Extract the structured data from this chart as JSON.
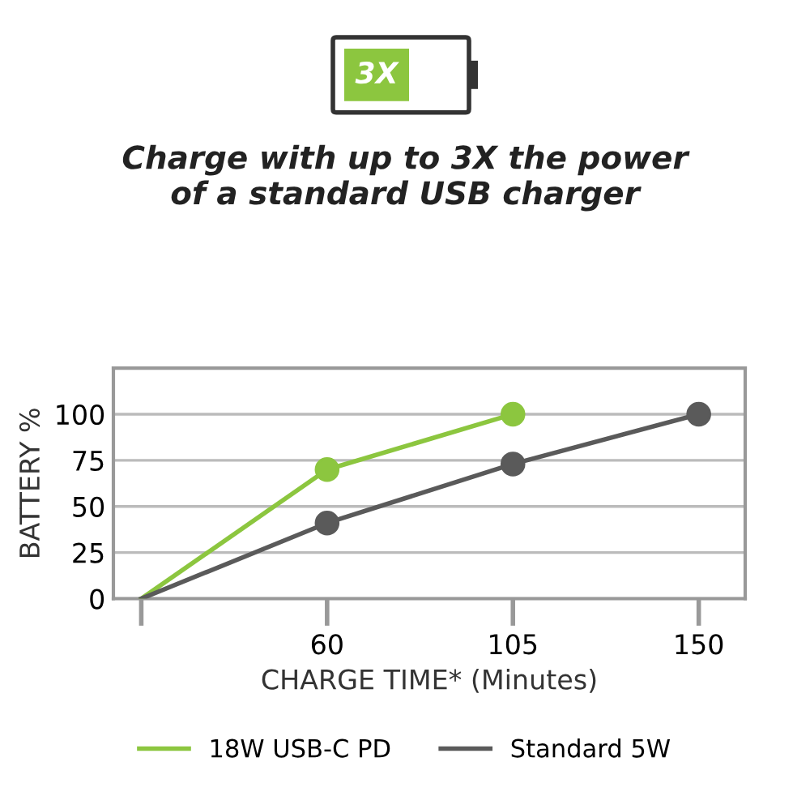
{
  "chart_data": {
    "type": "line",
    "title": "Charge with up to 3X the power\nof a standard USB charger",
    "annotations": [
      "3X"
    ],
    "xlabel": "CHARGE TIME* (Minutes)",
    "ylabel": "BATTERY %",
    "categories": [
      null,
      "60",
      "105",
      "150"
    ],
    "series": [
      {
        "name": "18W USB-C PD",
        "color": "#8cc63f",
        "values": [
          0,
          70,
          100,
          null
        ]
      },
      {
        "name": "Standard 5W",
        "color": "#5a5a5a",
        "values": [
          0,
          41,
          73,
          100
        ]
      }
    ],
    "ylim": [
      0,
      125
    ],
    "yticks": [
      0,
      25,
      50,
      75,
      100
    ],
    "grid": "y",
    "legend": "bottom",
    "marker": "circle",
    "line_style": "solid"
  }
}
